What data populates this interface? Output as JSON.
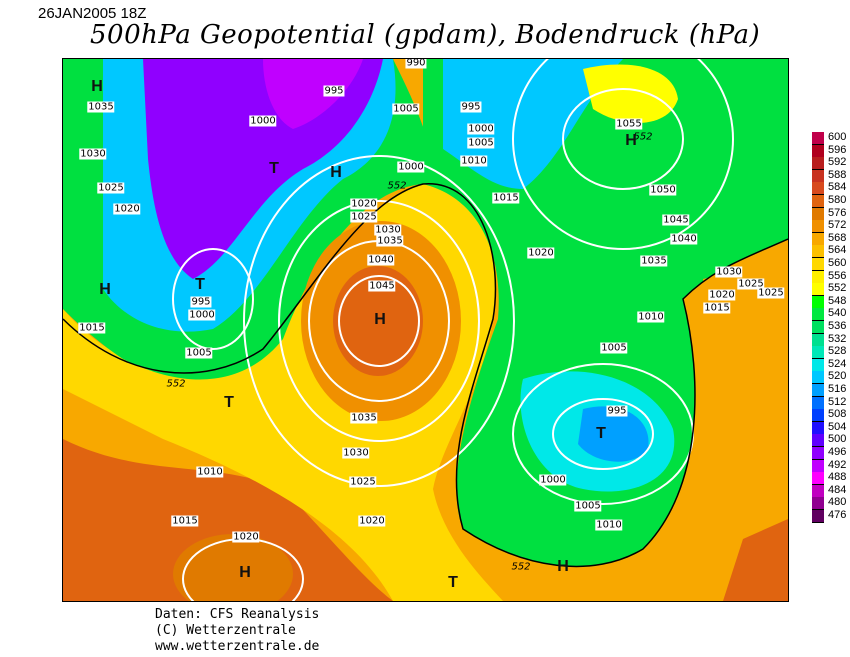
{
  "header": {
    "date": "26JAN2005 18Z",
    "title": "500hPa Geopotential (gpdam), Bodendruck (hPa)"
  },
  "legend": {
    "levels": [
      "600",
      "596",
      "592",
      "588",
      "584",
      "580",
      "576",
      "572",
      "568",
      "564",
      "560",
      "556",
      "552",
      "548",
      "540",
      "536",
      "532",
      "528",
      "524",
      "520",
      "516",
      "512",
      "508",
      "504",
      "500",
      "496",
      "492",
      "488",
      "484",
      "480",
      "476"
    ],
    "colors": [
      "#c0004a",
      "#b0001e",
      "#b81e1e",
      "#c83220",
      "#d84a1e",
      "#e06410",
      "#e07a00",
      "#f09000",
      "#f8a800",
      "#fcc000",
      "#ffd800",
      "#fff000",
      "#ffff00",
      "#00ff00",
      "#00e840",
      "#00e060",
      "#00e090",
      "#00e8b8",
      "#00e8e8",
      "#00c8ff",
      "#00a0ff",
      "#0070ff",
      "#0040ff",
      "#2010ff",
      "#6000ff",
      "#9000ff",
      "#c000ff",
      "#ff00ff",
      "#c000c0",
      "#900090",
      "#600060"
    ]
  },
  "map": {
    "isobar_labels": [
      "990",
      "995",
      "1005",
      "995",
      "1000",
      "1005",
      "1000",
      "1035",
      "1030",
      "1025",
      "1020",
      "1010",
      "1000",
      "552",
      "1020",
      "1025",
      "1015",
      "1030",
      "1035",
      "1040",
      "1045",
      "1020",
      "1055",
      "552",
      "1050",
      "1045",
      "1040",
      "1035",
      "1030",
      "1025",
      "1025",
      "1020",
      "1015",
      "1010",
      "1005",
      "995",
      "1000",
      "1015",
      "1005",
      "552",
      "1035",
      "1030",
      "1025",
      "1010",
      "1015",
      "1020",
      "1020",
      "995",
      "1000",
      "1005",
      "1010",
      "552"
    ],
    "pressure_centers": [
      "H",
      "H",
      "H",
      "H",
      "H",
      "H",
      "H",
      "T",
      "T",
      "T",
      "T",
      "T"
    ]
  },
  "footer": {
    "line1": "Daten: CFS Reanalysis",
    "line2": "(C) Wetterzentrale",
    "line3": "www.wetterzentrale.de"
  }
}
